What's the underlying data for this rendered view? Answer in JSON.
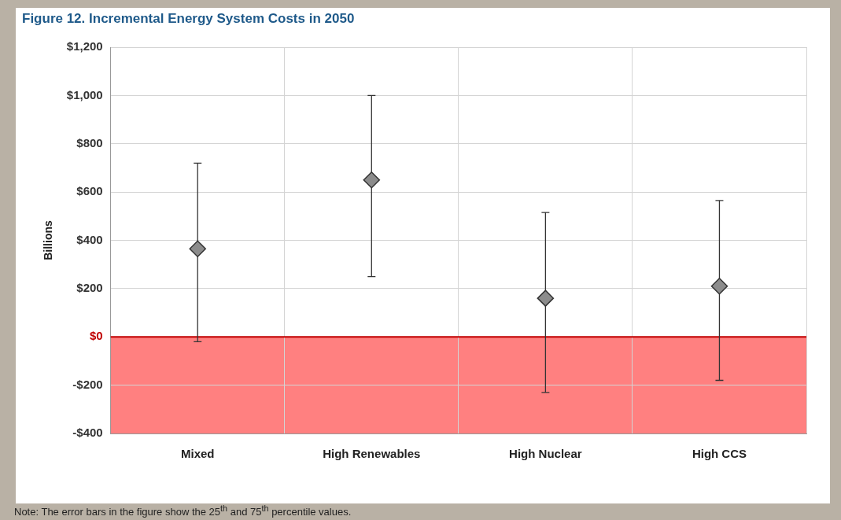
{
  "chart_data": {
    "type": "scatter",
    "title": "Figure 12. Incremental Energy System Costs in 2050",
    "ylabel": "Billions",
    "categories": [
      "Mixed",
      "High Renewables",
      "High Nuclear",
      "High CCS"
    ],
    "values": [
      365,
      650,
      160,
      210
    ],
    "color": "#8c8c8c",
    "errors": [
      [
        -20,
        720
      ],
      [
        250,
        1000
      ],
      [
        -230,
        515
      ],
      [
        -180,
        565
      ]
    ],
    "marker": "diamond",
    "ylim": [
      -400,
      1200
    ],
    "yticks": [
      {
        "value": -400,
        "label": "-$400"
      },
      {
        "value": -200,
        "label": "-$200"
      },
      {
        "value": 0,
        "label": "$0"
      },
      {
        "value": 200,
        "label": "$200"
      },
      {
        "value": 400,
        "label": "$400"
      },
      {
        "value": 600,
        "label": "$600"
      },
      {
        "value": 800,
        "label": "$800"
      },
      {
        "value": 1000,
        "label": "$1,000"
      },
      {
        "value": 1200,
        "label": "$1,200"
      }
    ],
    "grid": true,
    "ref_lines": [
      {
        "axis": "y",
        "value": 0,
        "color": "#c00000"
      }
    ],
    "bands": [
      {
        "axis": "y",
        "from": -400,
        "to": 0,
        "color": "#ff8080"
      }
    ],
    "annotations": [
      "Note: The error bars in the figure show the 25$^{th}$ and 75$^{th}$ percentile values."
    ]
  }
}
